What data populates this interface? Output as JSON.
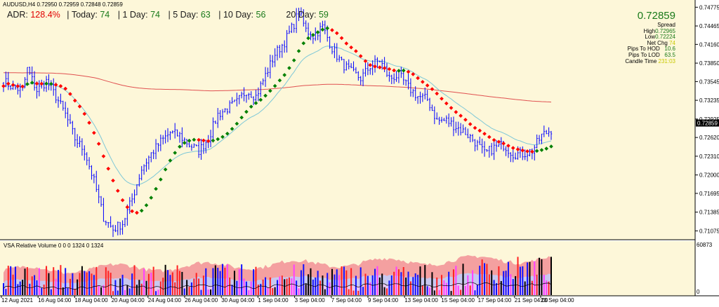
{
  "header": {
    "symbol_line": "AUDUSD,H4  0.72950 0.72959 0.72848 0.72859"
  },
  "adr": {
    "adr_label": "ADR:",
    "adr_value": "128.4%",
    "today_label": "Today:",
    "today_value": "74",
    "day1_label": "1 Day:",
    "day1_value": "74",
    "day5_label": "5 Day:",
    "day5_value": "63",
    "day10_label": "10 Day:",
    "day10_value": "56",
    "day20_label": "20 Day:",
    "day20_value": "59"
  },
  "info_panel": {
    "price": "0.72859",
    "spread": "Spread",
    "high_label": "High",
    "high_value": "0.72965",
    "low_label": "Low",
    "low_value": "0.72224",
    "netchg_label": "Net Chg",
    "netchg_value": "74",
    "hod_label": "Pips To HOD",
    "hod_value": "10.6",
    "lod_label": "Pips To LOD",
    "lod_value": "63.5",
    "ct_label": "Candle Time",
    "ct_value": "231:03"
  },
  "vsa": {
    "title": "VSA Relative Volume 0 0 0 1324 0 1324",
    "max_label": "60873",
    "min_label": "0"
  },
  "colors": {
    "background": "#fdf7d9",
    "candle": "#0000ff",
    "ma_up": "#008000",
    "ma_down": "#ff0000",
    "ma_slow": "#e05050",
    "ma_mid": "#7ec8d8",
    "vol_bg": "#f4a0a0"
  },
  "chart_data": {
    "type": "candlestick",
    "symbol": "AUDUSD",
    "timeframe": "H4",
    "ylim": [
      0.70975,
      0.74825
    ],
    "y_ticks": [
      "0.74775",
      "0.74465",
      "0.74160",
      "0.73850",
      "0.73545",
      "0.73235",
      "0.72925",
      "0.72620",
      "0.72310",
      "0.72000",
      "0.71695",
      "0.71385",
      "0.71075"
    ],
    "last_price": "0.72859",
    "x_ticks": [
      "12 Aug 2021",
      "16 Aug 04:00",
      "18 Aug 04:00",
      "20 Aug 04:00",
      "24 Aug 04:00",
      "26 Aug 04:00",
      "30 Aug 04:00",
      "1 Sep 04:00",
      "3 Sep 04:00",
      "7 Sep 04:00",
      "9 Sep 04:00",
      "13 Sep 04:00",
      "15 Sep 04:00",
      "17 Sep 04:00",
      "21 Sep 04:00",
      "23 Sep 04:00"
    ],
    "anchors": [
      [
        0,
        0.7355
      ],
      [
        4,
        0.7345
      ],
      [
        8,
        0.734
      ],
      [
        10,
        0.7375
      ],
      [
        14,
        0.734
      ],
      [
        18,
        0.7355
      ],
      [
        22,
        0.733
      ],
      [
        26,
        0.73
      ],
      [
        30,
        0.726
      ],
      [
        34,
        0.724
      ],
      [
        38,
        0.719
      ],
      [
        42,
        0.713
      ],
      [
        46,
        0.711
      ],
      [
        50,
        0.712
      ],
      [
        54,
        0.716
      ],
      [
        58,
        0.721
      ],
      [
        62,
        0.7235
      ],
      [
        66,
        0.7255
      ],
      [
        70,
        0.727
      ],
      [
        74,
        0.7265
      ],
      [
        78,
        0.725
      ],
      [
        82,
        0.724
      ],
      [
        86,
        0.726
      ],
      [
        90,
        0.73
      ],
      [
        94,
        0.731
      ],
      [
        98,
        0.732
      ],
      [
        102,
        0.734
      ],
      [
        106,
        0.733
      ],
      [
        110,
        0.7365
      ],
      [
        114,
        0.74
      ],
      [
        118,
        0.742
      ],
      [
        122,
        0.745
      ],
      [
        124,
        0.747
      ],
      [
        127,
        0.744
      ],
      [
        130,
        0.743
      ],
      [
        134,
        0.7445
      ],
      [
        138,
        0.741
      ],
      [
        142,
        0.7385
      ],
      [
        146,
        0.737
      ],
      [
        150,
        0.736
      ],
      [
        154,
        0.738
      ],
      [
        158,
        0.739
      ],
      [
        162,
        0.736
      ],
      [
        166,
        0.7365
      ],
      [
        170,
        0.7345
      ],
      [
        174,
        0.733
      ],
      [
        178,
        0.7325
      ],
      [
        182,
        0.729
      ],
      [
        186,
        0.729
      ],
      [
        190,
        0.728
      ],
      [
        194,
        0.727
      ],
      [
        198,
        0.7255
      ],
      [
        202,
        0.7235
      ],
      [
        206,
        0.7245
      ],
      [
        210,
        0.725
      ],
      [
        214,
        0.7235
      ],
      [
        218,
        0.7235
      ],
      [
        222,
        0.724
      ],
      [
        226,
        0.7265
      ],
      [
        230,
        0.7275
      ]
    ],
    "bars": 231,
    "series": [
      {
        "name": "",
        "kind": "ma_dotted",
        "period": 21
      },
      {
        "name": "",
        "kind": "ma_line",
        "period": 34
      },
      {
        "name": "",
        "kind": "ma_line",
        "period": 100
      }
    ]
  }
}
